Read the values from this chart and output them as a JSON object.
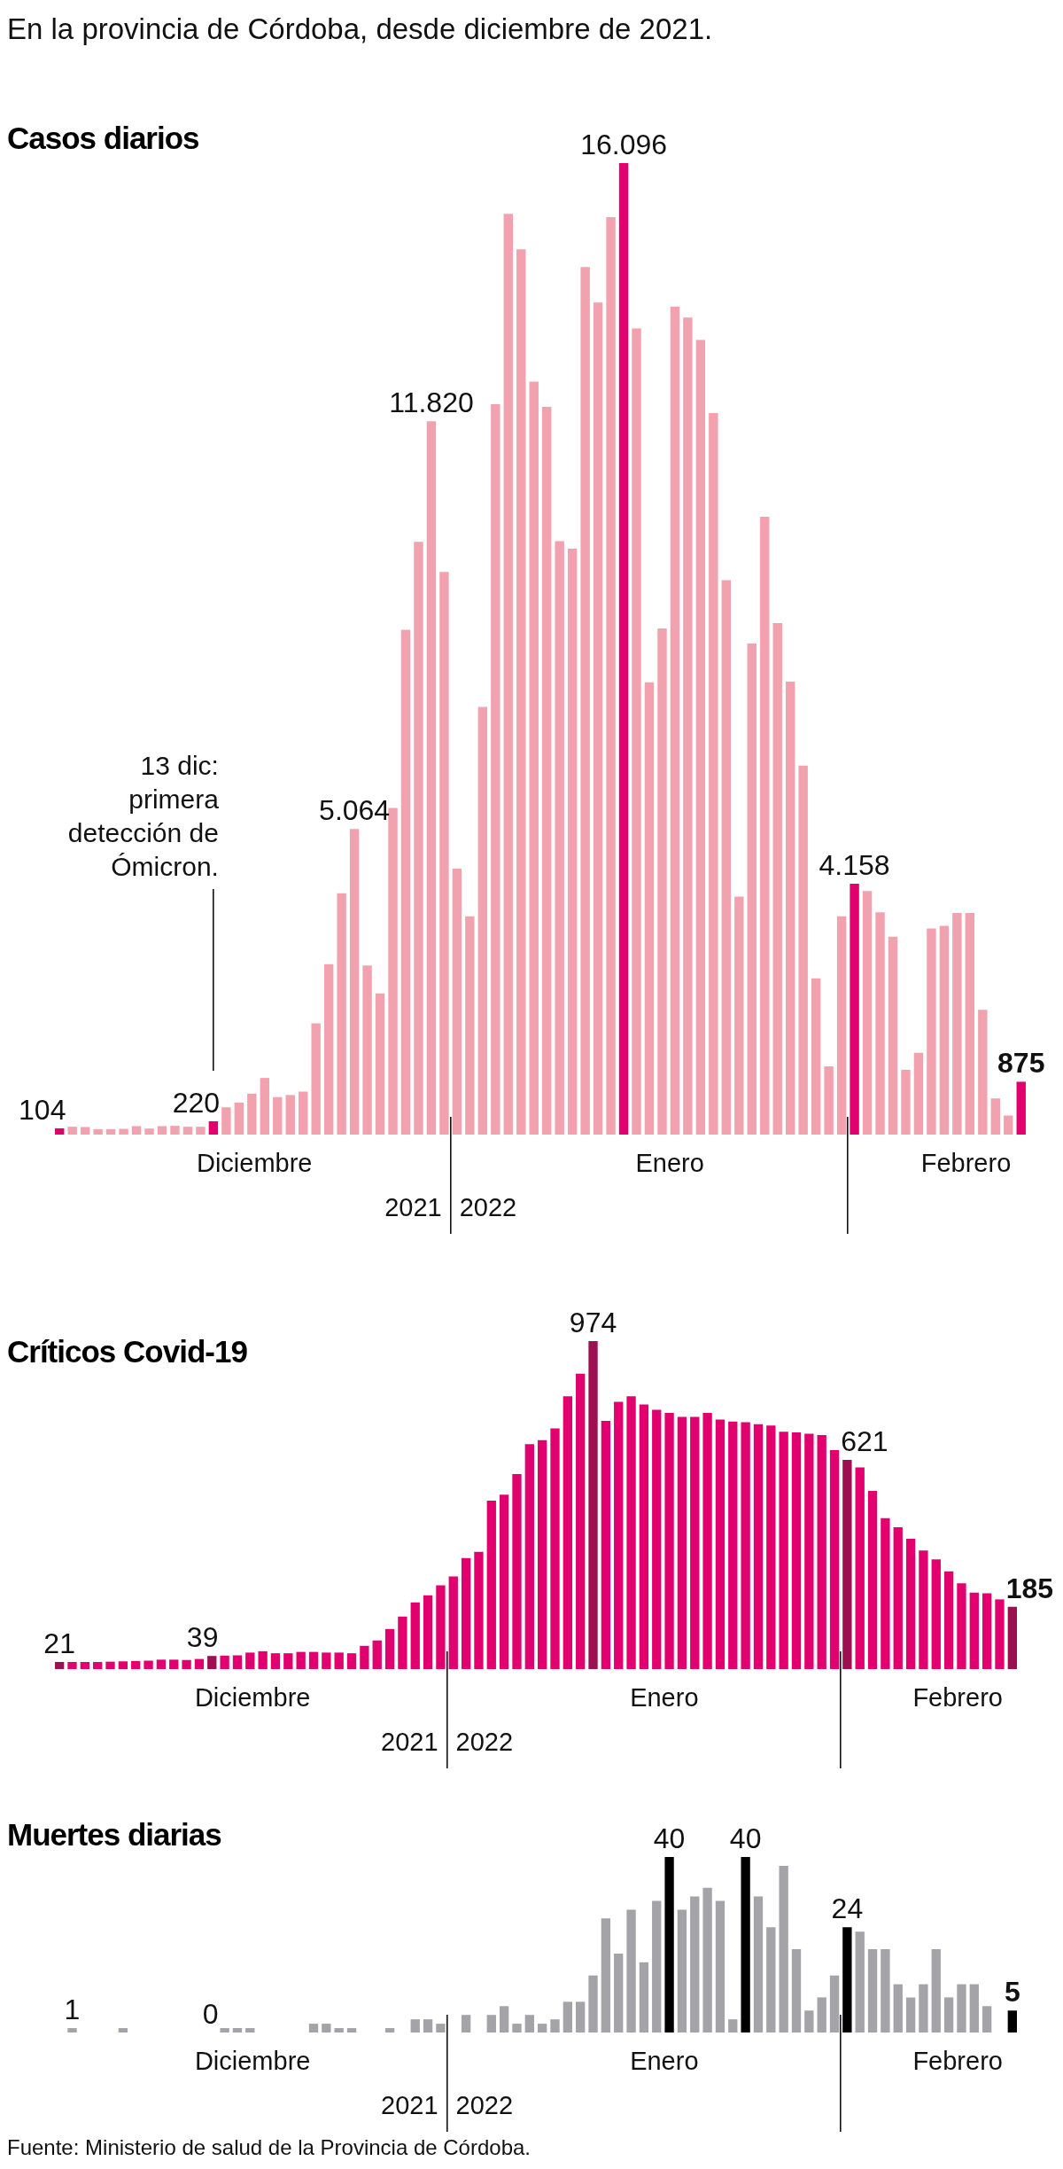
{
  "chart_data": [
    {
      "type": "bar",
      "subtitle": "En la provincia de Córdoba, desde diciembre de 2021.",
      "title": "Casos diarios",
      "categories": [
        null,
        null,
        null,
        null,
        null,
        null,
        null,
        null,
        null,
        null,
        null,
        null,
        null,
        null,
        null,
        null,
        null,
        null,
        null,
        null,
        null,
        null,
        null,
        null,
        null,
        null,
        null,
        null,
        null,
        null,
        null,
        null,
        null,
        null,
        null,
        null,
        null,
        null,
        null,
        null,
        null,
        null,
        null,
        null,
        null,
        null,
        null,
        null,
        null,
        null,
        null,
        null,
        null,
        null,
        null,
        null,
        null,
        null,
        null,
        null,
        null,
        null,
        null,
        null,
        null,
        null,
        null,
        null,
        null,
        null,
        null,
        null,
        null,
        null,
        null,
        null
      ],
      "values": [
        104,
        130,
        125,
        90,
        90,
        95,
        140,
        100,
        140,
        145,
        130,
        130,
        220,
        452,
        531,
        678,
        938,
        621,
        655,
        712,
        1842,
        2825,
        4000,
        5064,
        2802,
        2339,
        5413,
        8362,
        9820,
        11820,
        9323,
        4407,
        3616,
        7085,
        12102,
        15255,
        14667,
        12475,
        12057,
        9831,
        9707,
        14374,
        13786,
        15199,
        16096,
        13357,
        7492,
        8385,
        13718,
        13537,
        13165,
        11955,
        9187,
        3944,
        8136,
        10238,
        8475,
        7503,
        6113,
        2588,
        1130,
        3616,
        4158,
        4034,
        3684,
        3277,
        1074,
        1356,
        3413,
        3458,
        3673,
        3673,
        2068,
        599,
        316,
        875
      ],
      "value_labels": [
        "104",
        null,
        null,
        null,
        null,
        null,
        null,
        null,
        null,
        null,
        null,
        null,
        "220",
        null,
        null,
        null,
        null,
        null,
        null,
        null,
        null,
        null,
        null,
        "5.064",
        null,
        null,
        null,
        null,
        null,
        "11.820",
        null,
        null,
        null,
        null,
        null,
        null,
        null,
        null,
        null,
        null,
        null,
        null,
        null,
        null,
        "16.096",
        null,
        null,
        null,
        null,
        null,
        null,
        null,
        null,
        null,
        null,
        null,
        null,
        null,
        null,
        null,
        null,
        null,
        "4.158",
        null,
        null,
        null,
        null,
        null,
        null,
        null,
        null,
        null,
        null,
        null,
        null,
        "875"
      ],
      "colors": [
        "#e2006f",
        "#f2a2ae",
        "#f2a2ae",
        "#f2a2ae",
        "#f2a2ae",
        "#f2a2ae",
        "#f2a2ae",
        "#f2a2ae",
        "#f2a2ae",
        "#f2a2ae",
        "#f2a2ae",
        "#f2a2ae",
        "#e2006f",
        "#f2a2ae",
        "#f2a2ae",
        "#f2a2ae",
        "#f2a2ae",
        "#f2a2ae",
        "#f2a2ae",
        "#f2a2ae",
        "#f2a2ae",
        "#f2a2ae",
        "#f2a2ae",
        "#f2a2ae",
        "#f2a2ae",
        "#f2a2ae",
        "#f2a2ae",
        "#f2a2ae",
        "#f2a2ae",
        "#f2a2ae",
        "#f2a2ae",
        "#f2a2ae",
        "#f2a2ae",
        "#f2a2ae",
        "#f2a2ae",
        "#f2a2ae",
        "#f2a2ae",
        "#f2a2ae",
        "#f2a2ae",
        "#f2a2ae",
        "#f2a2ae",
        "#f2a2ae",
        "#f2a2ae",
        "#f2a2ae",
        "#e2006f",
        "#f2a2ae",
        "#f2a2ae",
        "#f2a2ae",
        "#f2a2ae",
        "#f2a2ae",
        "#f2a2ae",
        "#f2a2ae",
        "#f2a2ae",
        "#f2a2ae",
        "#f2a2ae",
        "#f2a2ae",
        "#f2a2ae",
        "#f2a2ae",
        "#f2a2ae",
        "#f2a2ae",
        "#f2a2ae",
        "#f2a2ae",
        "#e2006f",
        "#f2a2ae",
        "#f2a2ae",
        "#f2a2ae",
        "#f2a2ae",
        "#f2a2ae",
        "#f2a2ae",
        "#f2a2ae",
        "#f2a2ae",
        "#f2a2ae",
        "#f2a2ae",
        "#f2a2ae",
        "#f2a2ae",
        "#e2006f"
      ],
      "annotations": [
        "13 dic: primera detección de Ómicron.",
        "Diciembre",
        "Enero",
        "Febrero",
        "2021",
        "2022"
      ]
    },
    {
      "type": "bar",
      "title": "Críticos Covid-19",
      "categories": [
        null,
        null,
        null,
        null,
        null,
        null,
        null,
        null,
        null,
        null,
        null,
        null,
        null,
        null,
        null,
        null,
        null,
        null,
        null,
        null,
        null,
        null,
        null,
        null,
        null,
        null,
        null,
        null,
        null,
        null,
        null,
        null,
        null,
        null,
        null,
        null,
        null,
        null,
        null,
        null,
        null,
        null,
        null,
        null,
        null,
        null,
        null,
        null,
        null,
        null,
        null,
        null,
        null,
        null,
        null,
        null,
        null,
        null,
        null,
        null,
        null,
        null,
        null,
        null,
        null,
        null,
        null,
        null,
        null,
        null,
        null,
        null,
        null,
        null,
        null,
        null
      ],
      "values": [
        21,
        21,
        21,
        21,
        22,
        23,
        24,
        25,
        28,
        28,
        27,
        30,
        39,
        40,
        41,
        49,
        53,
        47,
        47,
        51,
        51,
        49,
        49,
        47,
        69,
        85,
        119,
        156,
        198,
        219,
        249,
        275,
        330,
        348,
        500,
        518,
        579,
        668,
        680,
        715,
        810,
        877,
        974,
        737,
        794,
        810,
        786,
        770,
        761,
        749,
        749,
        761,
        741,
        735,
        733,
        727,
        723,
        705,
        703,
        699,
        695,
        650,
        621,
        599,
        529,
        448,
        421,
        387,
        352,
        326,
        290,
        255,
        227,
        225,
        207,
        185
      ],
      "value_labels": [
        "21",
        null,
        null,
        null,
        null,
        null,
        null,
        null,
        null,
        null,
        null,
        null,
        "39",
        null,
        null,
        null,
        null,
        null,
        null,
        null,
        null,
        null,
        null,
        null,
        null,
        null,
        null,
        null,
        null,
        null,
        null,
        null,
        null,
        null,
        null,
        null,
        null,
        null,
        null,
        null,
        null,
        null,
        "974",
        null,
        null,
        null,
        null,
        null,
        null,
        null,
        null,
        null,
        null,
        null,
        null,
        null,
        null,
        null,
        null,
        null,
        null,
        null,
        "621",
        null,
        null,
        null,
        null,
        null,
        null,
        null,
        null,
        null,
        null,
        null,
        null,
        "185"
      ],
      "colors": [
        "#9c0f50",
        "#e2006f",
        "#e2006f",
        "#e2006f",
        "#e2006f",
        "#e2006f",
        "#e2006f",
        "#e2006f",
        "#e2006f",
        "#e2006f",
        "#e2006f",
        "#e2006f",
        "#9c0f50",
        "#e2006f",
        "#e2006f",
        "#e2006f",
        "#e2006f",
        "#e2006f",
        "#e2006f",
        "#e2006f",
        "#e2006f",
        "#e2006f",
        "#e2006f",
        "#e2006f",
        "#e2006f",
        "#e2006f",
        "#e2006f",
        "#e2006f",
        "#e2006f",
        "#e2006f",
        "#e2006f",
        "#e2006f",
        "#e2006f",
        "#e2006f",
        "#e2006f",
        "#e2006f",
        "#e2006f",
        "#e2006f",
        "#e2006f",
        "#e2006f",
        "#e2006f",
        "#e2006f",
        "#9c0f50",
        "#e2006f",
        "#e2006f",
        "#e2006f",
        "#e2006f",
        "#e2006f",
        "#e2006f",
        "#e2006f",
        "#e2006f",
        "#e2006f",
        "#e2006f",
        "#e2006f",
        "#e2006f",
        "#e2006f",
        "#e2006f",
        "#e2006f",
        "#e2006f",
        "#e2006f",
        "#e2006f",
        "#e2006f",
        "#9c0f50",
        "#e2006f",
        "#e2006f",
        "#e2006f",
        "#e2006f",
        "#e2006f",
        "#e2006f",
        "#e2006f",
        "#e2006f",
        "#e2006f",
        "#e2006f",
        "#e2006f",
        "#e2006f",
        "#9c0f50"
      ],
      "annotations": [
        "Diciembre",
        "Enero",
        "Febrero",
        "2021",
        "2022"
      ]
    },
    {
      "type": "bar",
      "title": "Muertes diarias",
      "categories": [
        null,
        null,
        null,
        null,
        null,
        null,
        null,
        null,
        null,
        null,
        null,
        null,
        null,
        null,
        null,
        null,
        null,
        null,
        null,
        null,
        null,
        null,
        null,
        null,
        null,
        null,
        null,
        null,
        null,
        null,
        null,
        null,
        null,
        null,
        null,
        null,
        null,
        null,
        null,
        null,
        null,
        null,
        null,
        null,
        null,
        null,
        null,
        null,
        null,
        null,
        null,
        null,
        null,
        null,
        null,
        null,
        null,
        null,
        null,
        null,
        null,
        null,
        null,
        null,
        null,
        null,
        null,
        null,
        null,
        null,
        null,
        null,
        null,
        null,
        null,
        null
      ],
      "values": [
        0,
        1,
        0,
        0,
        0,
        1,
        0,
        0,
        0,
        0,
        0,
        0,
        0,
        1,
        1,
        1,
        0,
        0,
        0,
        0,
        2,
        2,
        1,
        1,
        0,
        0,
        1,
        0,
        3,
        3,
        2,
        0,
        4,
        0,
        4,
        6,
        2,
        4,
        2,
        3,
        7,
        7,
        13,
        26,
        18,
        28,
        16,
        30,
        40,
        28,
        31,
        33,
        30,
        3,
        40,
        31,
        24,
        38,
        19,
        5,
        8,
        13,
        24,
        23,
        19,
        19,
        11,
        8,
        11,
        19,
        8,
        11,
        11,
        6,
        0,
        5
      ],
      "value_labels": [
        null,
        "1",
        null,
        null,
        null,
        null,
        null,
        null,
        null,
        null,
        null,
        null,
        "0",
        null,
        null,
        null,
        null,
        null,
        null,
        null,
        null,
        null,
        null,
        null,
        null,
        null,
        null,
        null,
        null,
        null,
        null,
        null,
        null,
        null,
        null,
        null,
        null,
        null,
        null,
        null,
        null,
        null,
        null,
        null,
        null,
        null,
        null,
        null,
        "40",
        null,
        null,
        null,
        null,
        null,
        "40",
        null,
        null,
        null,
        null,
        null,
        null,
        null,
        "24",
        null,
        null,
        null,
        null,
        null,
        null,
        null,
        null,
        null,
        null,
        null,
        null,
        "5"
      ],
      "colors": [
        "#a3a3a8",
        "#a3a3a8",
        "#a3a3a8",
        "#a3a3a8",
        "#a3a3a8",
        "#a3a3a8",
        "#a3a3a8",
        "#a3a3a8",
        "#a3a3a8",
        "#a3a3a8",
        "#a3a3a8",
        "#a3a3a8",
        "#a3a3a8",
        "#a3a3a8",
        "#a3a3a8",
        "#a3a3a8",
        "#a3a3a8",
        "#a3a3a8",
        "#a3a3a8",
        "#a3a3a8",
        "#a3a3a8",
        "#a3a3a8",
        "#a3a3a8",
        "#a3a3a8",
        "#a3a3a8",
        "#a3a3a8",
        "#a3a3a8",
        "#a3a3a8",
        "#a3a3a8",
        "#a3a3a8",
        "#a3a3a8",
        "#a3a3a8",
        "#a3a3a8",
        "#a3a3a8",
        "#a3a3a8",
        "#a3a3a8",
        "#a3a3a8",
        "#a3a3a8",
        "#a3a3a8",
        "#a3a3a8",
        "#a3a3a8",
        "#a3a3a8",
        "#a3a3a8",
        "#a3a3a8",
        "#a3a3a8",
        "#a3a3a8",
        "#a3a3a8",
        "#a3a3a8",
        "#000000",
        "#a3a3a8",
        "#a3a3a8",
        "#a3a3a8",
        "#a3a3a8",
        "#a3a3a8",
        "#000000",
        "#a3a3a8",
        "#a3a3a8",
        "#a3a3a8",
        "#a3a3a8",
        "#a3a3a8",
        "#a3a3a8",
        "#a3a3a8",
        "#000000",
        "#a3a3a8",
        "#a3a3a8",
        "#a3a3a8",
        "#a3a3a8",
        "#a3a3a8",
        "#a3a3a8",
        "#a3a3a8",
        "#a3a3a8",
        "#a3a3a8",
        "#a3a3a8",
        "#a3a3a8",
        "#a3a3a8",
        "#000000"
      ],
      "annotations": [
        "Diciembre",
        "Enero",
        "Febrero",
        "2021",
        "2022",
        "Fuente: Ministerio de salud de la Provincia de Córdoba."
      ]
    }
  ]
}
